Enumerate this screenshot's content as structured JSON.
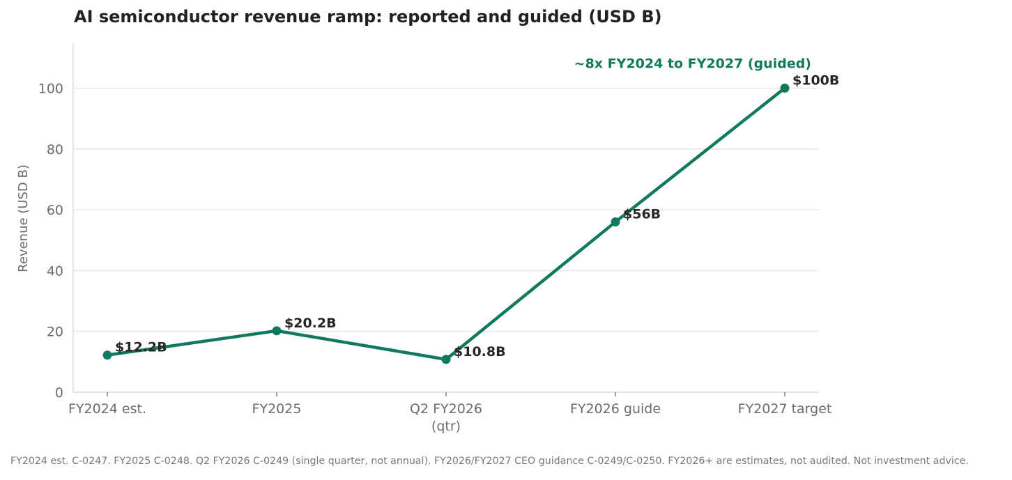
{
  "title": "AI semiconductor revenue ramp: reported and guided (USD B)",
  "footnote": "FY2024 est. C-0247. FY2025 C-0248. Q2 FY2026 C-0249 (single quarter, not annual). FY2026/FY2027 CEO guidance C-0249/C-0250. FY2026+ are estimates, not audited. Not investment advice.",
  "colors": {
    "series": "#117a5e",
    "grid": "#e3e3e3",
    "axis": "#dcdcd0",
    "title": "#222222",
    "text_muted": "#6b6b6b"
  },
  "chart_data": {
    "type": "line",
    "title": "AI semiconductor revenue ramp: reported and guided (USD B)",
    "xlabel": "",
    "ylabel": "Revenue (USD B)",
    "ylim": [
      0,
      115
    ],
    "yticks": [
      0,
      20,
      40,
      60,
      80,
      100
    ],
    "grid": "horizontal",
    "categories": [
      [
        "FY2024 est."
      ],
      [
        "FY2025"
      ],
      [
        "Q2 FY2026",
        "(qtr)"
      ],
      [
        "FY2026 guide"
      ],
      [
        "FY2027 target"
      ]
    ],
    "series": [
      {
        "values": [
          12.2,
          20.2,
          10.8,
          56,
          100
        ],
        "labels": [
          "$12.2B",
          "$20.2B",
          "$10.8B",
          "$56B",
          "$100B"
        ]
      }
    ],
    "annotation": {
      "text": "~8x FY2024 to FY2027 (guided)",
      "x_index": 4,
      "y": 108
    }
  }
}
